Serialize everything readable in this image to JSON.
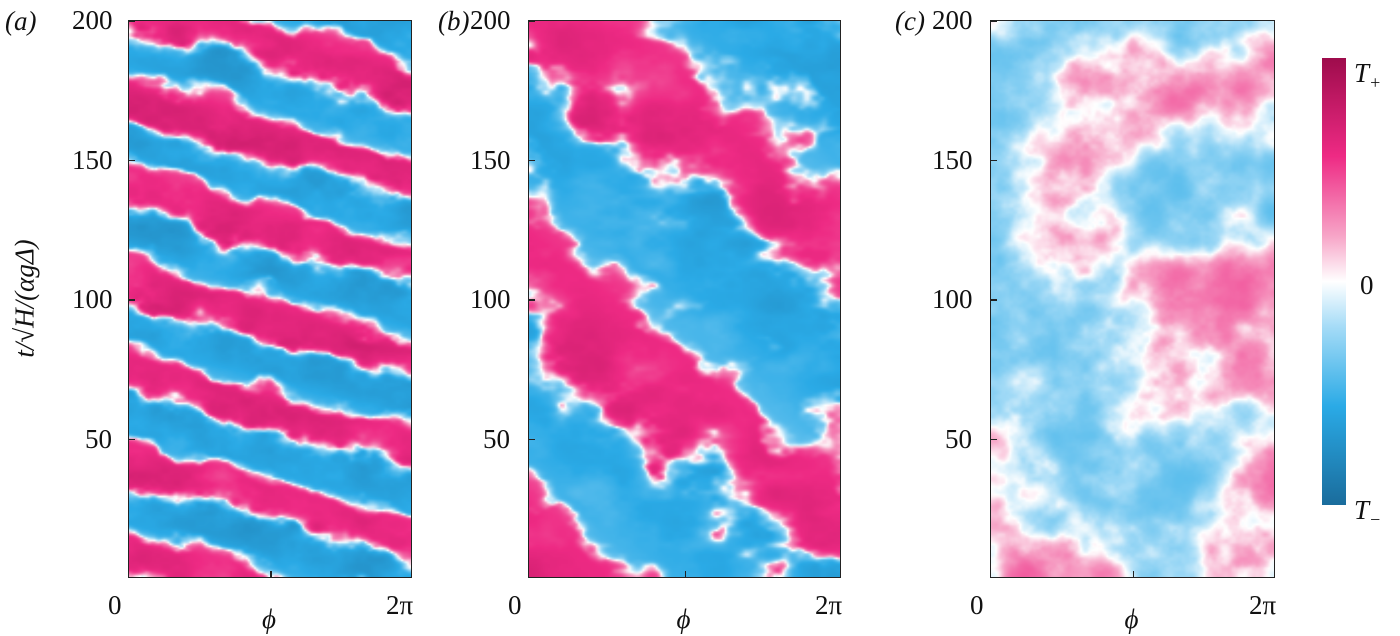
{
  "chart_data": [
    {
      "panel_label": "(a)",
      "type": "heatmap",
      "xlabel": "ϕ",
      "ylabel": "t/√H/(αgΔ)",
      "xticks": [
        "0",
        "2π"
      ],
      "yticks": [
        "200",
        "150",
        "100",
        "50"
      ],
      "xlim": [
        "0",
        "2π"
      ],
      "ylim": [
        0,
        200
      ],
      "pattern": "diagonal traveling bands, period ~33 time units",
      "amplitude": 1.0
    },
    {
      "panel_label": "(b)",
      "type": "heatmap",
      "xlabel": "ϕ",
      "xticks": [
        "0",
        "2π"
      ],
      "yticks": [
        "200",
        "150",
        "100",
        "50"
      ],
      "xlim": [
        "0",
        "2π"
      ],
      "ylim": [
        0,
        200
      ],
      "pattern": "broad diagonal bands, period ~100 time units",
      "amplitude": 0.95
    },
    {
      "panel_label": "(c)",
      "type": "heatmap",
      "xlabel": "ϕ",
      "xticks": [
        "0",
        "2π"
      ],
      "yticks": [
        "200",
        "150",
        "100",
        "50"
      ],
      "xlim": [
        "0",
        "2π"
      ],
      "ylim": [
        0,
        200
      ],
      "pattern": "irregular weak patches",
      "amplitude": 0.5
    }
  ],
  "colorbar": {
    "max_label": "T",
    "max_sub": "+",
    "mid_label": "0",
    "min_label": "T",
    "min_sub": "−",
    "colors": {
      "max": "#9e0c4c",
      "pos": "#ee2a84",
      "zero": "#ffffff",
      "neg": "#2aaae6",
      "min": "#1a6c9c"
    }
  }
}
